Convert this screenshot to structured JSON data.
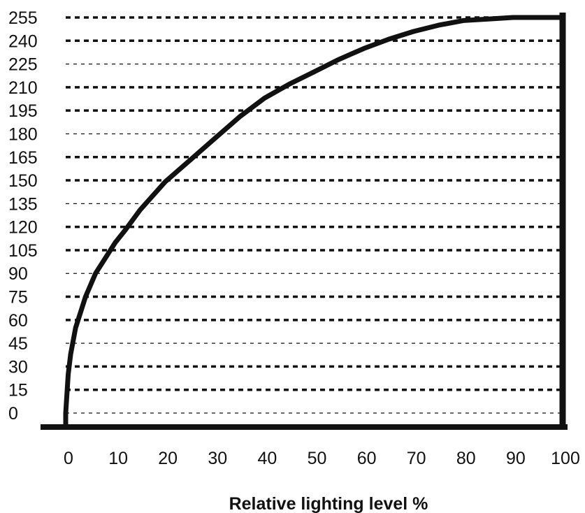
{
  "chart_data": {
    "type": "line",
    "title": "",
    "xlabel": "Relative lighting level %",
    "ylabel": "",
    "xlim": [
      0,
      100
    ],
    "ylim": [
      0,
      255
    ],
    "x_ticks": [
      0,
      10,
      20,
      30,
      40,
      50,
      60,
      70,
      80,
      90,
      100
    ],
    "y_ticks": [
      0,
      15,
      30,
      45,
      60,
      75,
      90,
      105,
      120,
      135,
      150,
      165,
      180,
      195,
      210,
      225,
      240,
      255
    ],
    "grid": "horizontal dashed",
    "series": [
      {
        "name": "",
        "color": "#111111",
        "x": [
          0,
          0.5,
          1,
          2,
          4,
          6,
          8,
          10,
          12,
          15,
          20,
          25,
          30,
          35,
          40,
          45,
          50,
          55,
          60,
          65,
          70,
          75,
          80,
          85,
          90,
          95,
          98,
          100
        ],
        "y": [
          0,
          25,
          38,
          55,
          75,
          90,
          100,
          110,
          118,
          131,
          149,
          163,
          177,
          191,
          203,
          212,
          220,
          228,
          235,
          241,
          246,
          250,
          253,
          254,
          255,
          255,
          255,
          255
        ]
      }
    ]
  }
}
